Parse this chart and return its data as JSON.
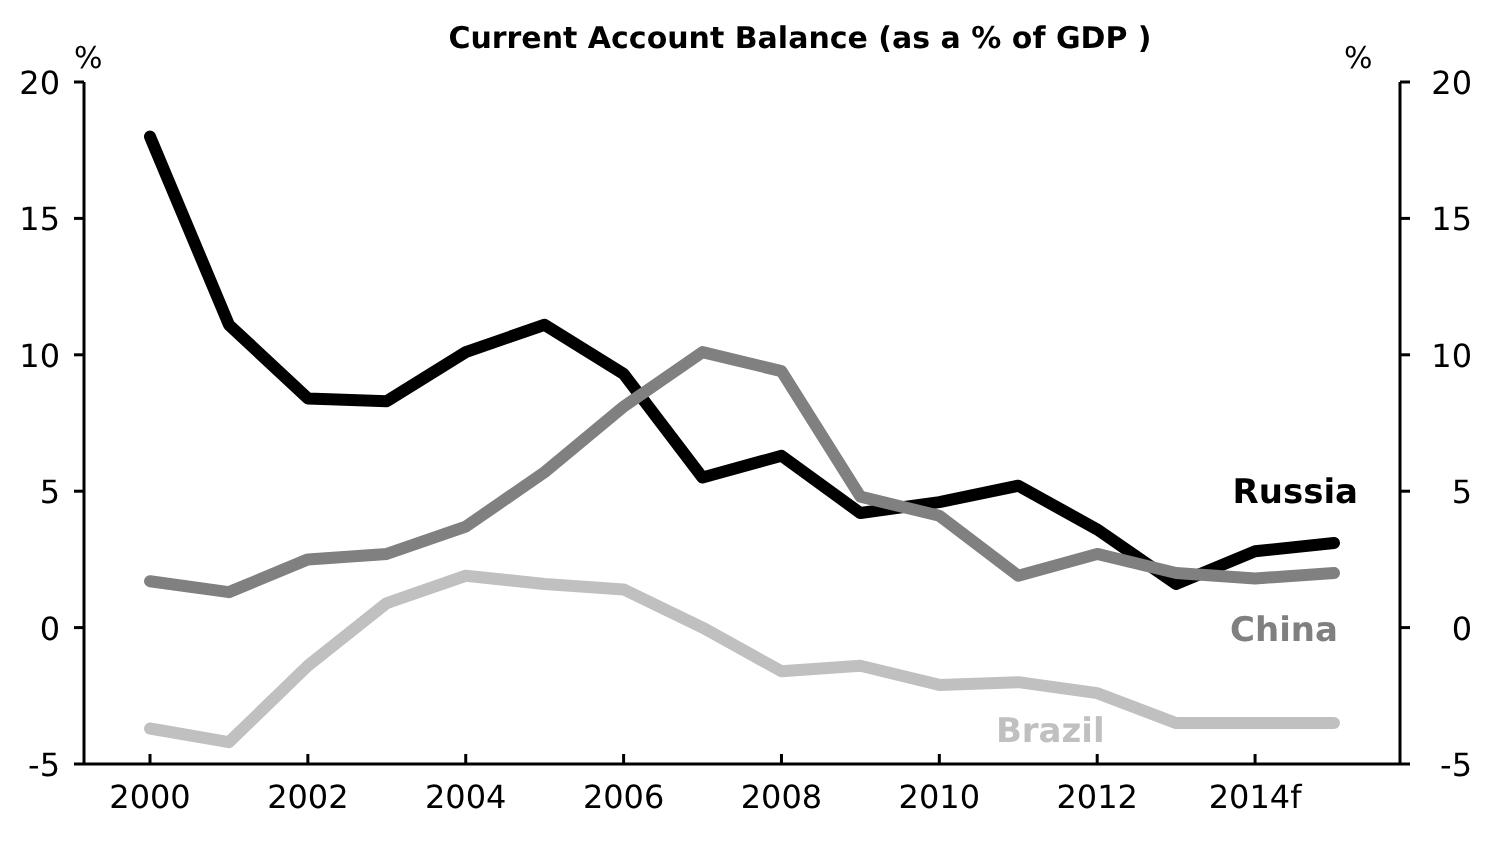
{
  "chart_data": {
    "type": "line",
    "title": "Current Account Balance  (as a % of GDP )",
    "ylabel": "%",
    "y2label": "%",
    "categories": [
      "2000",
      null,
      "2002",
      null,
      "2004",
      null,
      "2006",
      null,
      "2008",
      null,
      "2010",
      null,
      "2012",
      null,
      "2014f",
      null
    ],
    "series": [
      {
        "name": "Russia",
        "color": "#000000",
        "values": [
          18.0,
          11.1,
          8.4,
          8.3,
          10.1,
          11.1,
          9.3,
          5.5,
          6.3,
          4.2,
          4.6,
          5.2,
          3.6,
          1.6,
          2.8,
          3.1
        ]
      },
      {
        "name": "China",
        "color": "#808080",
        "values": [
          1.7,
          1.3,
          2.5,
          2.7,
          3.7,
          5.7,
          8.1,
          10.1,
          9.4,
          4.8,
          4.1,
          1.9,
          2.7,
          2.0,
          1.8,
          2.0
        ]
      },
      {
        "name": "Brazil",
        "color": "#c0c0c0",
        "values": [
          -3.7,
          -4.2,
          -1.4,
          0.9,
          1.9,
          1.6,
          1.4,
          0.0,
          -1.6,
          -1.4,
          -2.1,
          -2.0,
          -2.4,
          -3.5,
          -3.5,
          -3.5
        ]
      }
    ],
    "ylim": [
      -5,
      20
    ],
    "yticks": [
      -5,
      0,
      5,
      10,
      15,
      20
    ],
    "y2lim": [
      -5,
      20
    ],
    "y2ticks": [
      -5,
      0,
      5,
      10,
      15,
      20
    ],
    "grid": false,
    "legend": false,
    "marker": "none",
    "line_style": "solid"
  }
}
